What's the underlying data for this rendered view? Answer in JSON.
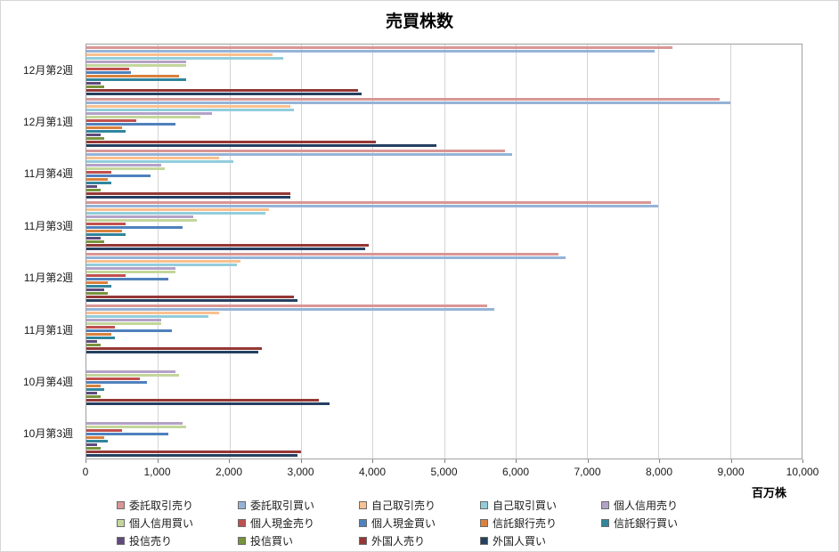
{
  "chart_data": {
    "type": "bar",
    "orientation": "horizontal",
    "title": "売買株数",
    "unit_label": "百万株",
    "grid": true,
    "legend_position": "bottom",
    "categories": [
      "12月第2週",
      "12月第1週",
      "11月第4週",
      "11月第3週",
      "11月第2週",
      "11月第1週",
      "10月第4週",
      "10月第3週"
    ],
    "xlim": [
      0,
      10000
    ],
    "x_ticks": [
      0,
      1000,
      2000,
      3000,
      4000,
      5000,
      6000,
      7000,
      8000,
      9000,
      10000
    ],
    "x_tick_labels": [
      "0",
      "1,000",
      "2,000",
      "3,000",
      "4,000",
      "5,000",
      "6,000",
      "7,000",
      "8,000",
      "9,000",
      "10,000"
    ],
    "series": [
      {
        "name": "委託取引売り",
        "color": "#d99694",
        "values": [
          8200,
          8850,
          5850,
          7900,
          6600,
          5600,
          0,
          0
        ]
      },
      {
        "name": "委託取引買い",
        "color": "#95b3d7",
        "values": [
          7950,
          9000,
          5950,
          8000,
          6700,
          5700,
          0,
          0
        ]
      },
      {
        "name": "自己取引売り",
        "color": "#fac08f",
        "values": [
          2600,
          2850,
          1850,
          2550,
          2150,
          1850,
          0,
          0
        ]
      },
      {
        "name": "自己取引買い",
        "color": "#92cddc",
        "values": [
          2750,
          2900,
          2050,
          2500,
          2100,
          1700,
          0,
          0
        ]
      },
      {
        "name": "個人信用売り",
        "color": "#b3a2c7",
        "values": [
          1400,
          1750,
          1050,
          1500,
          1250,
          1050,
          1250,
          1350
        ]
      },
      {
        "name": "個人信用買い",
        "color": "#c3d69b",
        "values": [
          1400,
          1600,
          1100,
          1550,
          1250,
          1050,
          1300,
          1400
        ]
      },
      {
        "name": "個人現金売り",
        "color": "#c0504d",
        "values": [
          600,
          700,
          350,
          550,
          550,
          400,
          750,
          500
        ]
      },
      {
        "name": "個人現金買い",
        "color": "#4f81bd",
        "values": [
          620,
          1250,
          900,
          1350,
          1150,
          1200,
          850,
          1150
        ]
      },
      {
        "name": "信託銀行売り",
        "color": "#d9803c",
        "values": [
          1300,
          500,
          300,
          500,
          300,
          350,
          200,
          250
        ]
      },
      {
        "name": "信託銀行買い",
        "color": "#31859c",
        "values": [
          1400,
          550,
          350,
          550,
          350,
          400,
          250,
          300
        ]
      },
      {
        "name": "投信売り",
        "color": "#604a7b",
        "values": [
          200,
          200,
          150,
          200,
          250,
          150,
          150,
          150
        ]
      },
      {
        "name": "投信買い",
        "color": "#77933c",
        "values": [
          250,
          250,
          200,
          250,
          300,
          200,
          200,
          200
        ]
      },
      {
        "name": "外国人売り",
        "color": "#953735",
        "values": [
          3800,
          4050,
          2850,
          3950,
          2900,
          2450,
          3250,
          3000
        ]
      },
      {
        "name": "外国人買い",
        "color": "#254061",
        "values": [
          3850,
          4900,
          2850,
          3900,
          2950,
          2400,
          3400,
          2950
        ]
      }
    ]
  }
}
